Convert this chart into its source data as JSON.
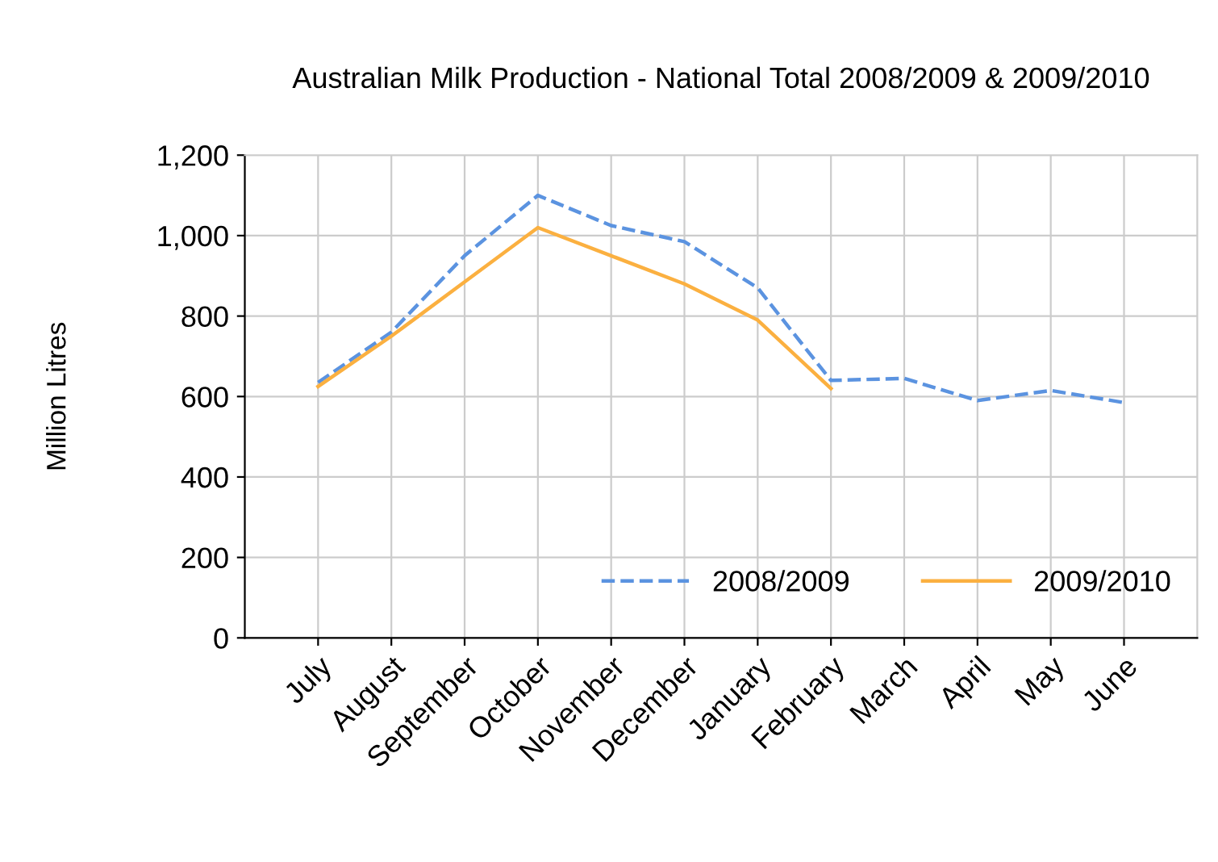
{
  "chart_data": {
    "type": "line",
    "title": "Australian Milk Production - National Total 2008/2009 & 2009/2010",
    "ylabel": "Million Litres",
    "categories": [
      "July",
      "August",
      "September",
      "October",
      "November",
      "December",
      "January",
      "February",
      "March",
      "April",
      "May",
      "June"
    ],
    "series": [
      {
        "name": "2008/2009",
        "color": "#5b93e0",
        "line_style": "dashed",
        "values": [
          635,
          760,
          950,
          1100,
          1025,
          985,
          870,
          640,
          645,
          590,
          615,
          585
        ]
      },
      {
        "name": "2009/2010",
        "color": "#fbb040",
        "line_style": "solid",
        "values": [
          625,
          750,
          885,
          1020,
          950,
          880,
          790,
          620,
          null,
          null,
          null,
          null
        ]
      }
    ],
    "ylim": [
      0,
      1200
    ],
    "yticks": [
      {
        "value": 0,
        "label": "0"
      },
      {
        "value": 200,
        "label": "200"
      },
      {
        "value": 400,
        "label": "400"
      },
      {
        "value": 600,
        "label": "600"
      },
      {
        "value": 800,
        "label": "800"
      },
      {
        "value": 1000,
        "label": "1,000"
      },
      {
        "value": 1200,
        "label": "1,200"
      }
    ],
    "grid": true,
    "legend": "bottom right",
    "marker": "none"
  }
}
